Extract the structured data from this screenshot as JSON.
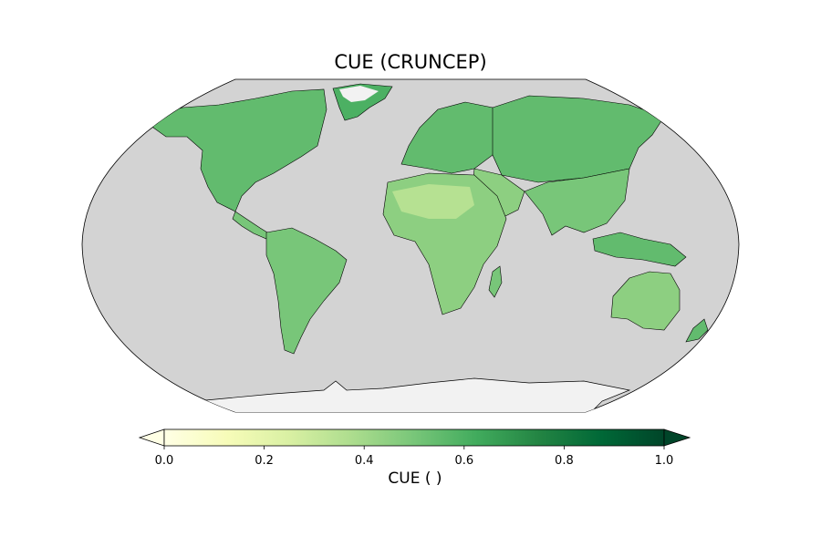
{
  "title": "CUE (CRUNCEP)",
  "projection": "robinson",
  "colormap": {
    "name": "YlGn",
    "stops": [
      "#ffffe5",
      "#f7fcb9",
      "#d9f0a3",
      "#addd8e",
      "#78c679",
      "#41ab5d",
      "#238443",
      "#006837",
      "#004529"
    ]
  },
  "colors": {
    "ocean": "#d3d3d3",
    "no_data_land": "#f2f2f2",
    "coastline": "#000000"
  },
  "colorbar": {
    "label": "CUE ( )",
    "min": 0.0,
    "max": 1.0,
    "extend": "both",
    "ticks": [
      "0.0",
      "0.2",
      "0.4",
      "0.6",
      "0.8",
      "1.0"
    ]
  },
  "regions": [
    {
      "name": "North America",
      "cue": 0.55
    },
    {
      "name": "Greenland",
      "cue": 0.6
    },
    {
      "name": "Central America",
      "cue": 0.5
    },
    {
      "name": "South America",
      "cue": 0.5
    },
    {
      "name": "Europe",
      "cue": 0.55
    },
    {
      "name": "Northern Asia",
      "cue": 0.55
    },
    {
      "name": "Middle East",
      "cue": 0.45
    },
    {
      "name": "Southern Asia",
      "cue": 0.5
    },
    {
      "name": "Africa",
      "cue": 0.45
    },
    {
      "name": "Sahara",
      "cue": 0.35
    },
    {
      "name": "Madagascar",
      "cue": 0.5
    },
    {
      "name": "Maritime Southeast Asia",
      "cue": 0.55
    },
    {
      "name": "Australia",
      "cue": 0.45
    },
    {
      "name": "New Zealand",
      "cue": 0.55
    }
  ]
}
